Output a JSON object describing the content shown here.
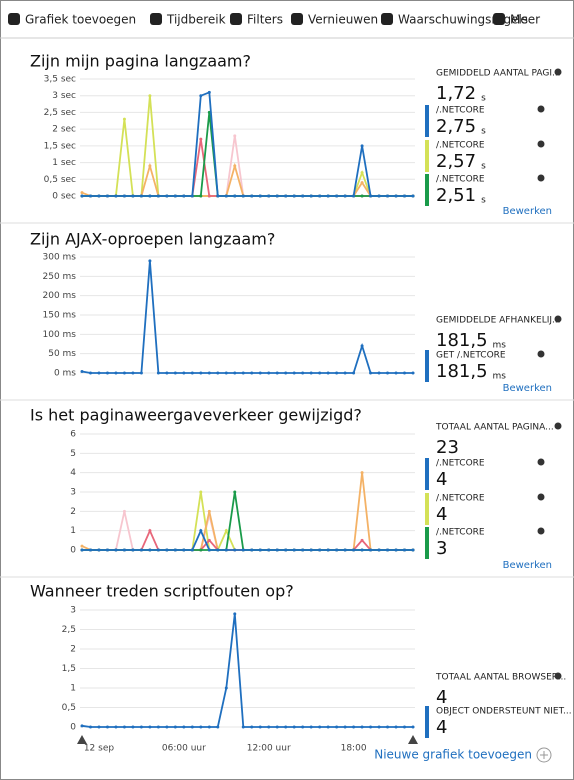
{
  "toolbar": [
    "Grafiek toevoegen",
    "Tijdbereik",
    "Filters",
    "Vernieuwen",
    "Waarschuwingsregels",
    "Meer"
  ],
  "chart_data": [
    {
      "type": "line",
      "title": "Zijn mijn pagina langzaam?",
      "ylim": [
        0,
        3.5
      ],
      "yticks": [
        {
          "value": 0,
          "label": "0 sec"
        },
        {
          "value": 0.5,
          "label": "0,5 sec"
        },
        {
          "value": 1,
          "label": "1 sec"
        },
        {
          "value": 1.5,
          "label": "1,5 sec"
        },
        {
          "value": 2,
          "label": "2 sec"
        },
        {
          "value": 2.5,
          "label": "2,5 sec"
        },
        {
          "value": 3,
          "label": "3 sec"
        },
        {
          "value": 3.5,
          "label": "3,5 sec"
        }
      ],
      "grid": true,
      "series": [
        {
          "color": "#f7c6cf",
          "values": [
            0,
            0,
            0,
            0,
            0,
            0,
            0,
            0,
            0,
            0,
            0,
            0,
            0,
            0,
            0,
            0,
            0,
            0,
            1.8,
            0,
            0,
            0,
            0,
            0,
            0,
            0,
            0,
            0,
            0,
            0,
            0,
            0,
            0,
            0,
            0,
            0,
            0,
            0,
            0,
            0
          ]
        },
        {
          "color": "#d4e157",
          "values": [
            0,
            0,
            0,
            0,
            0,
            2.3,
            0,
            0,
            3,
            0,
            0,
            0,
            0,
            0,
            0,
            0,
            0,
            0,
            0,
            0,
            0,
            0,
            0,
            0,
            0,
            0,
            0,
            0,
            0,
            0,
            0,
            0,
            0,
            0.7,
            0,
            0,
            0,
            0,
            0,
            0
          ]
        },
        {
          "color": "#f4b266",
          "values": [
            0.1,
            0,
            0,
            0,
            0,
            0,
            0,
            0,
            0.9,
            0,
            0,
            0,
            0,
            0,
            0,
            0,
            0,
            0,
            0.9,
            0,
            0,
            0,
            0,
            0,
            0,
            0,
            0,
            0,
            0,
            0,
            0,
            0,
            0,
            0.4,
            0,
            0,
            0,
            0,
            0,
            0
          ]
        },
        {
          "color": "#e8677a",
          "values": [
            0,
            0,
            0,
            0,
            0,
            0,
            0,
            0,
            0,
            0,
            0,
            0,
            0,
            0,
            1.7,
            0,
            0,
            0,
            0,
            0,
            0,
            0,
            0,
            0,
            0,
            0,
            0,
            0,
            0,
            0,
            0,
            0,
            0,
            0,
            0,
            0,
            0,
            0,
            0,
            0
          ]
        },
        {
          "color": "#1a9b4a",
          "values": [
            0,
            0,
            0,
            0,
            0,
            0,
            0,
            0,
            0,
            0,
            0,
            0,
            0,
            0,
            0,
            2.5,
            0,
            0,
            0,
            0,
            0,
            0,
            0,
            0,
            0,
            0,
            0,
            0,
            0,
            0,
            0,
            0,
            0,
            0,
            0,
            0,
            0,
            0,
            0,
            0
          ]
        },
        {
          "color": "#1f6fbf",
          "values": [
            0,
            0,
            0,
            0,
            0,
            0,
            0,
            0,
            0,
            0,
            0,
            0,
            0,
            0,
            3,
            3.1,
            0,
            0,
            0,
            0,
            0,
            0,
            0,
            0,
            0,
            0,
            0,
            0,
            0,
            0,
            0,
            0,
            0,
            1.5,
            0,
            0,
            0,
            0,
            0,
            0
          ]
        }
      ]
    },
    {
      "type": "line",
      "title": "Zijn AJAX-oproepen langzaam?",
      "ylim": [
        0,
        300
      ],
      "yticks": [
        {
          "value": 0,
          "label": "0 ms"
        },
        {
          "value": 50,
          "label": "50 ms"
        },
        {
          "value": 100,
          "label": "100 ms"
        },
        {
          "value": 150,
          "label": "150 ms"
        },
        {
          "value": 200,
          "label": "200 ms"
        },
        {
          "value": 250,
          "label": "250 ms"
        },
        {
          "value": 300,
          "label": "300 ms"
        }
      ],
      "grid": true,
      "series": [
        {
          "color": "#1f6fbf",
          "values": [
            4,
            0,
            0,
            0,
            0,
            0,
            0,
            0,
            290,
            0,
            0,
            0,
            0,
            0,
            0,
            0,
            0,
            0,
            0,
            0,
            0,
            0,
            0,
            0,
            0,
            0,
            0,
            0,
            0,
            0,
            0,
            0,
            0,
            70,
            0,
            0,
            0,
            0,
            0,
            0
          ]
        }
      ]
    },
    {
      "type": "line",
      "title": "Is het paginaweergaveverkeer gewijzigd?",
      "ylim": [
        0,
        6
      ],
      "yticks": [
        0,
        1,
        2,
        3,
        4,
        5,
        6
      ],
      "grid": true,
      "series": [
        {
          "color": "#f7c6cf",
          "values": [
            0,
            0,
            0,
            0,
            0,
            2,
            0,
            0,
            0,
            0,
            0,
            0,
            0,
            0,
            0,
            1.8,
            0,
            0,
            0,
            0,
            0,
            0,
            0,
            0,
            0,
            0,
            0,
            0,
            0,
            0,
            0,
            0,
            0,
            0,
            0,
            0,
            0,
            0,
            0,
            0
          ]
        },
        {
          "color": "#d4e157",
          "values": [
            0,
            0,
            0,
            0,
            0,
            0,
            0,
            0,
            0,
            0,
            0,
            0,
            0,
            0,
            3,
            0,
            0,
            1,
            0,
            0,
            0,
            0,
            0,
            0,
            0,
            0,
            0,
            0,
            0,
            0,
            0,
            0,
            0,
            0,
            0,
            0,
            0,
            0,
            0,
            0
          ]
        },
        {
          "color": "#f4b266",
          "values": [
            0.2,
            0,
            0,
            0,
            0,
            0,
            0,
            0,
            0,
            0,
            0,
            0,
            0,
            0,
            0,
            2,
            0,
            0,
            0,
            0,
            0,
            0,
            0,
            0,
            0,
            0,
            0,
            0,
            0,
            0,
            0,
            0,
            0,
            4,
            0,
            0,
            0,
            0,
            0,
            0
          ]
        },
        {
          "color": "#e8677a",
          "values": [
            0,
            0,
            0,
            0,
            0,
            0,
            0,
            0,
            1,
            0,
            0,
            0,
            0,
            0,
            0,
            0.5,
            0,
            0,
            0,
            0,
            0,
            0,
            0,
            0,
            0,
            0,
            0,
            0,
            0,
            0,
            0,
            0,
            0,
            0.5,
            0,
            0,
            0,
            0,
            0,
            0
          ]
        },
        {
          "color": "#1a9b4a",
          "values": [
            0,
            0,
            0,
            0,
            0,
            0,
            0,
            0,
            0,
            0,
            0,
            0,
            0,
            0,
            0,
            0,
            0,
            0,
            3,
            0,
            0,
            0,
            0,
            0,
            0,
            0,
            0,
            0,
            0,
            0,
            0,
            0,
            0,
            0,
            0,
            0,
            0,
            0,
            0,
            0
          ]
        },
        {
          "color": "#1f6fbf",
          "values": [
            0,
            0,
            0,
            0,
            0,
            0,
            0,
            0,
            0,
            0,
            0,
            0,
            0,
            0,
            1,
            0,
            0,
            0,
            0,
            0,
            0,
            0,
            0,
            0,
            0,
            0,
            0,
            0,
            0,
            0,
            0,
            0,
            0,
            0,
            0,
            0,
            0,
            0,
            0,
            0
          ]
        }
      ]
    },
    {
      "type": "line",
      "title": "Wanneer treden scriptfouten op?",
      "ylim": [
        0,
        3
      ],
      "yticks": [
        0,
        {
          "value": 0.5,
          "label": "0,5"
        },
        1,
        {
          "value": 1.5,
          "label": "1,5"
        },
        2,
        {
          "value": 2.5,
          "label": "2,5"
        },
        3
      ],
      "grid": true,
      "categories": [
        null,
        null,
        "12 sep",
        null,
        null,
        null,
        null,
        null,
        null,
        null,
        null,
        null,
        "06:00 uur",
        null,
        null,
        null,
        null,
        null,
        null,
        null,
        null,
        null,
        "12:00 uur",
        null,
        null,
        null,
        null,
        null,
        null,
        null,
        null,
        null,
        "18:00",
        null,
        null,
        null,
        null,
        null,
        null,
        null
      ],
      "series": [
        {
          "color": "#1f6fbf",
          "values": [
            0.03,
            0,
            0,
            0,
            0,
            0,
            0,
            0,
            0,
            0,
            0,
            0,
            0,
            0,
            0,
            0,
            0,
            1,
            2.9,
            0,
            0,
            0,
            0,
            0,
            0,
            0,
            0,
            0,
            0,
            0,
            0,
            0,
            0,
            0,
            0,
            0,
            0,
            0,
            0,
            0
          ]
        }
      ]
    }
  ],
  "panels": [
    {
      "heading": "GEMIDDELD AANTAL PAGI...",
      "value": "1,72",
      "unit": "s",
      "link": "Bewerken",
      "items": [
        {
          "label": "/.NETCORE",
          "value": "2,75",
          "unit": "s",
          "color": "#1f6fbf"
        },
        {
          "label": "/.NETCORE",
          "value": "2,57",
          "unit": "s",
          "color": "#d4e157"
        },
        {
          "label": "/.NETCORE",
          "value": "2,51",
          "unit": "s",
          "color": "#1a9b4a"
        }
      ]
    },
    {
      "heading": "GEMIDDELDE AFHANKELIJ...",
      "value": "181,5",
      "unit": "ms",
      "link": "Bewerken",
      "items": [
        {
          "label": "GET  /.NETCORE",
          "value": "181,5",
          "unit": "ms",
          "color": "#1f6fbf"
        }
      ]
    },
    {
      "heading": "TOTAAL AANTAL PAGINA...",
      "value": "23",
      "link": "Bewerken",
      "items": [
        {
          "label": "/.NETCORE",
          "value": "4",
          "color": "#1f6fbf"
        },
        {
          "label": "/.NETCORE",
          "value": "4",
          "color": "#d4e157"
        },
        {
          "label": "/.NETCORE",
          "value": "3",
          "color": "#1a9b4a"
        }
      ]
    },
    {
      "heading": "TOTAAL AANTAL BROWSER...",
      "value": "4",
      "items": [
        {
          "label": "OBJECT ONDERSTEUNT NIET...",
          "value": "4",
          "color": "#1f6fbf"
        }
      ]
    }
  ],
  "footer": "Nieuwe grafiek toevoegen"
}
